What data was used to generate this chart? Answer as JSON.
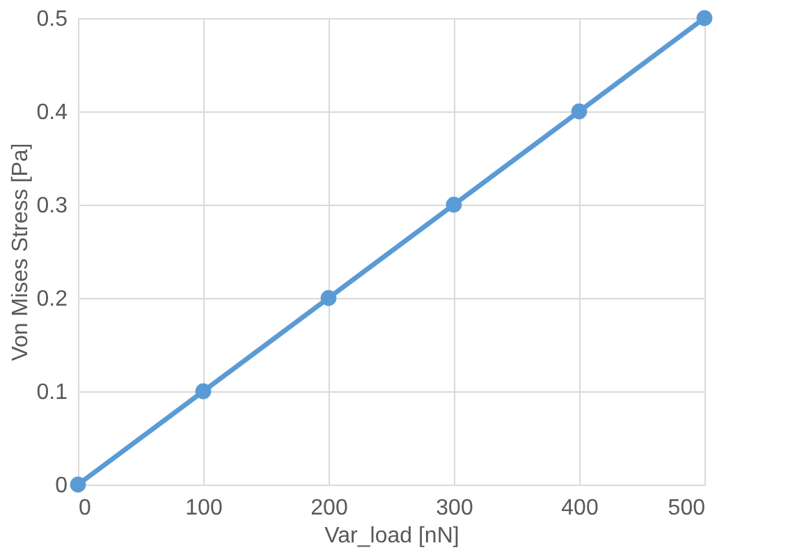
{
  "chart_data": {
    "type": "line",
    "xlabel": "Var_load [nN]",
    "ylabel": "Von Mises Stress [Pa]",
    "x": [
      0,
      100,
      200,
      300,
      400,
      500
    ],
    "series": [
      {
        "color": "#5b9bd5",
        "values": [
          0,
          0.1,
          0.2,
          0.3,
          0.4,
          0.5
        ]
      }
    ],
    "xlim": [
      0,
      500
    ],
    "xticks": [
      0,
      100,
      200,
      300,
      400,
      500
    ],
    "ylim": [
      0,
      0.5
    ],
    "yticks": [
      0,
      0.1,
      0.2,
      0.3,
      0.4,
      0.5
    ],
    "grid": true,
    "marker": "circle",
    "line_style": "solid"
  }
}
